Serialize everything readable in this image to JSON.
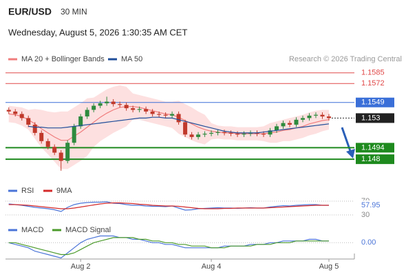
{
  "header": {
    "symbol": "EUR/USD",
    "timeframe": "30 MIN",
    "datetime": "Wednesday, August 5, 2026 1:30:35 AM CET"
  },
  "chart_data": [
    {
      "type": "candlestick",
      "source": "Research © 2026 Trading Central",
      "ylim": [
        1.146,
        1.1594
      ],
      "up_color": "#2e8b3e",
      "down_color": "#c0392b",
      "open": [
        1.154,
        1.1538,
        1.1535,
        1.153,
        1.1522,
        1.1512,
        1.1502,
        1.1495,
        1.1488,
        1.1478,
        1.15,
        1.152,
        1.1532,
        1.154,
        1.1545,
        1.1548,
        1.155,
        1.1547,
        1.1546,
        1.1542,
        1.154,
        1.1541,
        1.1538,
        1.1535,
        1.1534,
        1.1533,
        1.1535,
        1.1525,
        1.151,
        1.1507,
        1.151,
        1.1511,
        1.1512,
        1.1513,
        1.1512,
        1.1511,
        1.151,
        1.1511,
        1.1512,
        1.1511,
        1.151,
        1.1515,
        1.152,
        1.1524,
        1.1522,
        1.1528,
        1.153,
        1.1533,
        1.1534,
        1.1532
      ],
      "high": [
        1.1543,
        1.1541,
        1.1538,
        1.1533,
        1.1525,
        1.1515,
        1.1505,
        1.1498,
        1.1491,
        1.1503,
        1.1523,
        1.1535,
        1.1543,
        1.1548,
        1.1551,
        1.1556,
        1.1553,
        1.155,
        1.1549,
        1.1545,
        1.1544,
        1.1544,
        1.1541,
        1.1538,
        1.1537,
        1.1538,
        1.1538,
        1.1528,
        1.1513,
        1.1513,
        1.1514,
        1.1515,
        1.1516,
        1.1516,
        1.1515,
        1.1514,
        1.1514,
        1.1515,
        1.1515,
        1.1514,
        1.1518,
        1.1523,
        1.1527,
        1.1527,
        1.1531,
        1.1533,
        1.1536,
        1.1537,
        1.1537,
        1.1535
      ],
      "low": [
        1.1535,
        1.1532,
        1.1527,
        1.1519,
        1.1509,
        1.1499,
        1.1492,
        1.1485,
        1.1466,
        1.1475,
        1.1497,
        1.1517,
        1.1529,
        1.1537,
        1.1542,
        1.1545,
        1.1544,
        1.1543,
        1.1539,
        1.1537,
        1.1537,
        1.1535,
        1.1532,
        1.1531,
        1.153,
        1.153,
        1.1522,
        1.1507,
        1.1504,
        1.1504,
        1.1507,
        1.1508,
        1.1509,
        1.1509,
        1.1508,
        1.1507,
        1.1507,
        1.1508,
        1.1508,
        1.1507,
        1.1507,
        1.1512,
        1.1517,
        1.1519,
        1.1519,
        1.1525,
        1.1527,
        1.153,
        1.1529,
        1.1527
      ],
      "close": [
        1.1538,
        1.1535,
        1.153,
        1.1522,
        1.1512,
        1.1502,
        1.1495,
        1.1488,
        1.1478,
        1.15,
        1.152,
        1.1532,
        1.154,
        1.1545,
        1.1548,
        1.155,
        1.1547,
        1.1546,
        1.1542,
        1.154,
        1.1541,
        1.1538,
        1.1535,
        1.1534,
        1.1533,
        1.1535,
        1.1525,
        1.151,
        1.1507,
        1.151,
        1.1511,
        1.1512,
        1.1513,
        1.1512,
        1.1511,
        1.151,
        1.1511,
        1.1512,
        1.1511,
        1.151,
        1.1515,
        1.152,
        1.1524,
        1.1522,
        1.1528,
        1.153,
        1.1533,
        1.1534,
        1.1532,
        1.153
      ],
      "series": [
        {
          "name": "MA 20 + Bollinger Bands",
          "color": "#f07c7c",
          "fill": "#fde0e0",
          "values": [
            1.1535,
            1.1534,
            1.1532,
            1.1528,
            1.1523,
            1.1517,
            1.1512,
            1.1507,
            1.1503,
            1.1503,
            1.1508,
            1.1513,
            1.1519,
            1.1525,
            1.1531,
            1.1536,
            1.154,
            1.1543,
            1.1544,
            1.1544,
            1.1543,
            1.1541,
            1.1539,
            1.1537,
            1.1535,
            1.1534,
            1.1531,
            1.1527,
            1.1523,
            1.1519,
            1.1516,
            1.1514,
            1.1513,
            1.1512,
            1.1512,
            1.1511,
            1.1511,
            1.1511,
            1.1511,
            1.1511,
            1.1512,
            1.1513,
            1.1515,
            1.1516,
            1.1518,
            1.152,
            1.1523,
            1.1525,
            1.1527,
            1.1528
          ],
          "upper": [
            1.1545,
            1.1544,
            1.1543,
            1.154,
            1.1541,
            1.154,
            1.1538,
            1.1537,
            1.1538,
            1.1538,
            1.1543,
            1.1548,
            1.1554,
            1.1555,
            1.156,
            1.1565,
            1.1568,
            1.157,
            1.1568,
            1.156,
            1.1558,
            1.1556,
            1.1554,
            1.1552,
            1.155,
            1.155,
            1.1551,
            1.1547,
            1.1543,
            1.1538,
            1.1534,
            1.1524,
            1.1521,
            1.152,
            1.152,
            1.1519,
            1.1519,
            1.1519,
            1.1519,
            1.152,
            1.1524,
            1.1526,
            1.1528,
            1.153,
            1.1532,
            1.1534,
            1.1537,
            1.1539,
            1.154,
            1.154
          ],
          "lower": [
            1.1525,
            1.1524,
            1.1521,
            1.1516,
            1.1505,
            1.1494,
            1.1486,
            1.1477,
            1.1468,
            1.1468,
            1.1473,
            1.1478,
            1.1484,
            1.1495,
            1.1502,
            1.1507,
            1.1512,
            1.1516,
            1.152,
            1.1528,
            1.1528,
            1.1526,
            1.1524,
            1.1522,
            1.152,
            1.1518,
            1.1511,
            1.1507,
            1.1503,
            1.15,
            1.1498,
            1.1504,
            1.1505,
            1.1504,
            1.1504,
            1.1503,
            1.1503,
            1.1503,
            1.1503,
            1.1502,
            1.15,
            1.15,
            1.1502,
            1.1502,
            1.1504,
            1.1506,
            1.1509,
            1.1511,
            1.1514,
            1.1516
          ]
        },
        {
          "name": "MA 50",
          "color": "#1f4e9a",
          "values": [
            null,
            null,
            null,
            1.152,
            1.1519,
            1.1519,
            1.1518,
            1.1518,
            1.1518,
            1.1519,
            1.152,
            1.1521,
            1.1522,
            1.1523,
            1.1524,
            1.1525,
            1.1526,
            1.1527,
            1.1528,
            1.1529,
            1.153,
            1.153,
            1.1531,
            1.1531,
            1.153,
            1.153,
            1.1528,
            1.1526,
            1.1524,
            1.1522,
            1.152,
            1.1518,
            1.1516,
            1.1514,
            1.1513,
            1.1512,
            1.1512,
            1.1512,
            1.1512,
            1.1513,
            1.1514,
            1.1515,
            1.1516,
            1.1517,
            1.1518,
            1.1519,
            1.152,
            1.1521,
            1.1522,
            1.1523
          ]
        }
      ],
      "levels": [
        {
          "value": 1.1585,
          "color": "#e04848",
          "style": "thin"
        },
        {
          "value": 1.1572,
          "color": "#e04848",
          "style": "thin"
        },
        {
          "value": 1.1549,
          "color": "#3a6fd8",
          "style": "box"
        },
        {
          "value": 1.153,
          "color": "#222222",
          "style": "dotted"
        },
        {
          "value": 1.1494,
          "color": "#1e8a1e",
          "style": "thick"
        },
        {
          "value": 1.148,
          "color": "#1e8a1e",
          "style": "thick"
        }
      ]
    },
    {
      "type": "line",
      "ylim": [
        20,
        80
      ],
      "yticks": [
        30,
        70
      ],
      "grid": true,
      "series": [
        {
          "name": "RSI",
          "color": "#4a74d8",
          "values": [
            62,
            60,
            58,
            55,
            52,
            50,
            48,
            45,
            40,
            52,
            60,
            64,
            66,
            67,
            67,
            68,
            64,
            63,
            60,
            58,
            58,
            56,
            55,
            55,
            54,
            56,
            50,
            44,
            45,
            48,
            49,
            50,
            51,
            50,
            50,
            49,
            50,
            51,
            50,
            50,
            53,
            55,
            57,
            56,
            58,
            59,
            60,
            60,
            58,
            57.95
          ]
        },
        {
          "name": "9MA",
          "color": "#d42a2a",
          "values": [
            60,
            60,
            59,
            58,
            56,
            54,
            52,
            50,
            48,
            48,
            50,
            53,
            56,
            59,
            62,
            64,
            65,
            65,
            64,
            63,
            61,
            60,
            58,
            57,
            56,
            56,
            55,
            53,
            51,
            49,
            48,
            48,
            48,
            49,
            49,
            50,
            50,
            50,
            50,
            50,
            51,
            52,
            53,
            54,
            55,
            56,
            57,
            58,
            58,
            58
          ]
        }
      ]
    },
    {
      "type": "line",
      "ylim": [
        -0.0008,
        0.0005
      ],
      "yticks": [
        {
          "value": 0,
          "label": "0.00"
        }
      ],
      "grid": true,
      "xlim": [
        -0.5,
        52.9
      ],
      "xticks": [
        {
          "value": 11,
          "label": "Aug 2"
        },
        {
          "value": 31,
          "label": "Aug 4"
        },
        {
          "value": 49,
          "label": "Aug 5"
        }
      ],
      "series": [
        {
          "name": "MACD",
          "color": "#4a74d8",
          "values": [
            0,
            -0.0001,
            -0.0002,
            -0.0003,
            -0.0005,
            -0.0006,
            -0.0007,
            -0.0008,
            -0.0009,
            -0.0006,
            -0.0003,
            0,
            0.0002,
            0.0003,
            0.0004,
            0.0004,
            0.0004,
            0.0003,
            0.0003,
            0.0002,
            0.0002,
            0.0001,
            0,
            0,
            -0.0001,
            -0.0001,
            -0.0002,
            -0.0003,
            -0.0003,
            -0.0003,
            -0.0003,
            -0.0003,
            -0.0003,
            -0.0002,
            -0.0002,
            -0.0002,
            -0.0002,
            -0.0001,
            -0.0001,
            -0.0001,
            0,
            0,
            0.0001,
            0.0001,
            0.0001,
            0.0001,
            0.0002,
            0.0002,
            0.0001,
            0.0001
          ]
        },
        {
          "name": "MACD Signal",
          "color": "#4a9a2a",
          "values": [
            0,
            0,
            -0.0001,
            -0.0002,
            -0.0003,
            -0.0004,
            -0.0005,
            -0.0006,
            -0.0007,
            -0.0007,
            -0.0006,
            -0.0004,
            -0.0002,
            0,
            0.0001,
            0.0002,
            0.0003,
            0.0003,
            0.0003,
            0.0003,
            0.0002,
            0.0002,
            0.0001,
            0.0001,
            0,
            0,
            -0.0001,
            -0.0001,
            -0.0002,
            -0.0002,
            -0.0002,
            -0.0003,
            -0.0003,
            -0.0003,
            -0.0002,
            -0.0002,
            -0.0002,
            -0.0002,
            -0.0001,
            -0.0001,
            -0.0001,
            0,
            0,
            0,
            0.0001,
            0.0001,
            0.0001,
            0.0001,
            0.0001,
            0.0001
          ]
        }
      ]
    }
  ]
}
